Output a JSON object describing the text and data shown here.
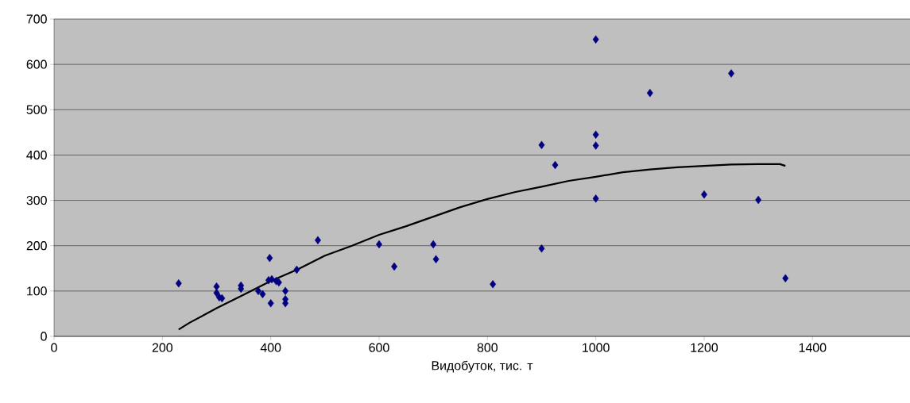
{
  "chart_data": {
    "type": "scatter",
    "xlabel": "Видобуток, тис. т",
    "xlim": [
      0,
      1580
    ],
    "ylim": [
      0,
      700
    ],
    "xticks": [
      0,
      200,
      400,
      600,
      800,
      1000,
      1200,
      1400
    ],
    "yticks": [
      0,
      100,
      200,
      300,
      400,
      500,
      600,
      700
    ],
    "grid": "y",
    "marker": "diamond",
    "series": [
      {
        "color": "#000080",
        "x": [
          230,
          300,
          300,
          305,
          310,
          345,
          345,
          377,
          385,
          398,
          400,
          396,
          402,
          410,
          415,
          427,
          427,
          427,
          448,
          487,
          600,
          628,
          700,
          705,
          810,
          900,
          900,
          925,
          1000,
          1000,
          1000,
          1000,
          1100,
          1200,
          1250,
          1300,
          1350
        ],
        "values": [
          117,
          110,
          96,
          86,
          84,
          112,
          105,
          100,
          93,
          173,
          73,
          124,
          126,
          122,
          119,
          100,
          82,
          73,
          147,
          212,
          203,
          154,
          203,
          170,
          115,
          194,
          422,
          378,
          655,
          445,
          421,
          304,
          537,
          313,
          580,
          301,
          128
        ]
      },
      {
        "type": "line",
        "color": "#000000",
        "marker": "none",
        "x": [
          230,
          250,
          300,
          350,
          400,
          450,
          500,
          550,
          600,
          650,
          700,
          750,
          800,
          850,
          900,
          950,
          1000,
          1050,
          1100,
          1150,
          1200,
          1250,
          1300,
          1340,
          1350
        ],
        "values": [
          15,
          30,
          62,
          92,
          122,
          148,
          178,
          200,
          224,
          243,
          264,
          285,
          303,
          318,
          330,
          343,
          352,
          362,
          368,
          373,
          376,
          379,
          380,
          380,
          376
        ]
      }
    ]
  }
}
